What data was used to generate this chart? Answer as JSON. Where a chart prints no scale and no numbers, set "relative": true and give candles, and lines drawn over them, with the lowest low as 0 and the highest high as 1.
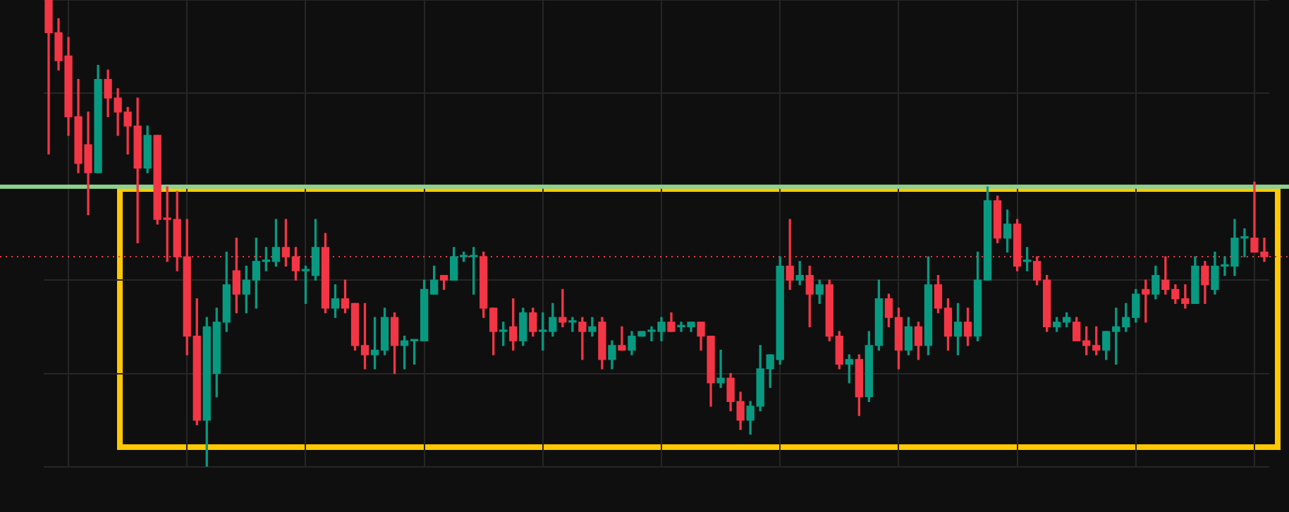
{
  "chart_data": {
    "type": "candlestick",
    "relative": true,
    "grid": true,
    "categories": [
      null,
      null,
      null,
      null,
      null,
      null,
      null,
      null,
      null,
      null,
      null,
      null,
      null,
      null,
      null,
      null,
      null,
      null,
      null,
      null,
      null,
      null,
      null,
      null,
      null,
      null,
      null,
      null,
      null,
      null,
      null,
      null,
      null,
      null,
      null,
      null,
      null,
      null,
      null,
      null,
      null,
      null,
      null,
      null,
      null,
      null,
      null,
      null,
      null,
      null,
      null,
      null,
      null,
      null,
      null,
      null,
      null,
      null,
      null,
      null,
      null,
      null,
      null,
      null,
      null,
      null,
      null,
      null,
      null,
      null,
      null,
      null,
      null,
      null,
      null,
      null,
      null,
      null,
      null,
      null,
      null,
      null,
      null,
      null,
      null,
      null,
      null,
      null,
      null,
      null,
      null,
      null,
      null,
      null,
      null,
      null,
      null,
      null,
      null,
      null,
      null,
      null,
      null,
      null,
      null,
      null,
      null,
      null,
      null,
      null,
      null,
      null,
      null,
      null,
      null,
      null,
      null,
      null,
      null,
      null,
      null,
      null,
      null,
      null
    ],
    "ohlc": [
      [
        1.0,
        1.0,
        0.67,
        0.93
      ],
      [
        0.93,
        0.96,
        0.85,
        0.87
      ],
      [
        0.88,
        0.92,
        0.71,
        0.75
      ],
      [
        0.75,
        0.83,
        0.63,
        0.65
      ],
      [
        0.69,
        0.76,
        0.54,
        0.63
      ],
      [
        0.63,
        0.86,
        0.63,
        0.83
      ],
      [
        0.83,
        0.85,
        0.75,
        0.79
      ],
      [
        0.79,
        0.81,
        0.71,
        0.76
      ],
      [
        0.76,
        0.77,
        0.67,
        0.73
      ],
      [
        0.73,
        0.79,
        0.48,
        0.64
      ],
      [
        0.64,
        0.73,
        0.63,
        0.71
      ],
      [
        0.71,
        0.71,
        0.52,
        0.53
      ],
      [
        0.53,
        0.6,
        0.44,
        0.53
      ],
      [
        0.53,
        0.59,
        0.42,
        0.45
      ],
      [
        0.45,
        0.53,
        0.24,
        0.28
      ],
      [
        0.28,
        0.36,
        0.09,
        0.1
      ],
      [
        0.1,
        0.32,
        0,
        0.3
      ],
      [
        0.2,
        0.34,
        0.15,
        0.31
      ],
      [
        0.31,
        0.46,
        0.29,
        0.39
      ],
      [
        0.42,
        0.49,
        0.33,
        0.37
      ],
      [
        0.37,
        0.43,
        0.33,
        0.4
      ],
      [
        0.4,
        0.49,
        0.34,
        0.44
      ],
      [
        0.44,
        0.47,
        0.42,
        0.44
      ],
      [
        0.44,
        0.53,
        0.43,
        0.47
      ],
      [
        0.47,
        0.53,
        0.43,
        0.45
      ],
      [
        0.45,
        0.47,
        0.4,
        0.42
      ],
      [
        0.42,
        0.43,
        0.35,
        0.42
      ],
      [
        0.41,
        0.53,
        0.4,
        0.47
      ],
      [
        0.47,
        0.5,
        0.33,
        0.34
      ],
      [
        0.34,
        0.39,
        0.32,
        0.36
      ],
      [
        0.36,
        0.4,
        0.33,
        0.34
      ],
      [
        0.35,
        0.35,
        0.25,
        0.26
      ],
      [
        0.26,
        0.35,
        0.21,
        0.24
      ],
      [
        0.24,
        0.32,
        0.21,
        0.25
      ],
      [
        0.25,
        0.34,
        0.24,
        0.32
      ],
      [
        0.32,
        0.33,
        0.2,
        0.26
      ],
      [
        0.26,
        0.28,
        0.21,
        0.27
      ],
      [
        0.27,
        0.27,
        0.22,
        0.27
      ],
      [
        0.27,
        0.4,
        0.27,
        0.38
      ],
      [
        0.37,
        0.43,
        0.37,
        0.4
      ],
      [
        0.41,
        0.41,
        0.38,
        0.4
      ],
      [
        0.4,
        0.47,
        0.4,
        0.45
      ],
      [
        0.45,
        0.46,
        0.44,
        0.45
      ],
      [
        0.45,
        0.47,
        0.37,
        0.45
      ],
      [
        0.45,
        0.46,
        0.32,
        0.34
      ],
      [
        0.34,
        0.34,
        0.24,
        0.29
      ],
      [
        0.29,
        0.31,
        0.26,
        0.29
      ],
      [
        0.3,
        0.36,
        0.25,
        0.27
      ],
      [
        0.27,
        0.34,
        0.26,
        0.33
      ],
      [
        0.33,
        0.34,
        0.28,
        0.29
      ],
      [
        0.29,
        0.33,
        0.25,
        0.29
      ],
      [
        0.29,
        0.35,
        0.28,
        0.32
      ],
      [
        0.32,
        0.38,
        0.3,
        0.31
      ],
      [
        0.31,
        0.32,
        0.29,
        0.31
      ],
      [
        0.31,
        0.32,
        0.23,
        0.29
      ],
      [
        0.29,
        0.32,
        0.28,
        0.3
      ],
      [
        0.31,
        0.32,
        0.21,
        0.23
      ],
      [
        0.23,
        0.27,
        0.21,
        0.26
      ],
      [
        0.26,
        0.3,
        0.25,
        0.25
      ],
      [
        0.25,
        0.29,
        0.24,
        0.28
      ],
      [
        0.28,
        0.29,
        0.28,
        0.29
      ],
      [
        0.29,
        0.3,
        0.27,
        0.29
      ],
      [
        0.29,
        0.32,
        0.27,
        0.31
      ],
      [
        0.31,
        0.33,
        0.29,
        0.29
      ],
      [
        0.3,
        0.31,
        0.29,
        0.3
      ],
      [
        0.3,
        0.31,
        0.29,
        0.31
      ],
      [
        0.31,
        0.31,
        0.25,
        0.28
      ],
      [
        0.28,
        0.28,
        0.13,
        0.18
      ],
      [
        0.18,
        0.25,
        0.17,
        0.19
      ],
      [
        0.19,
        0.2,
        0.12,
        0.14
      ],
      [
        0.14,
        0.16,
        0.08,
        0.1
      ],
      [
        0.1,
        0.14,
        0.07,
        0.13
      ],
      [
        0.13,
        0.26,
        0.12,
        0.21
      ],
      [
        0.21,
        0.24,
        0.17,
        0.24
      ],
      [
        0.23,
        0.45,
        0.22,
        0.43
      ],
      [
        0.43,
        0.53,
        0.38,
        0.4
      ],
      [
        0.4,
        0.44,
        0.39,
        0.41
      ],
      [
        0.41,
        0.43,
        0.3,
        0.37
      ],
      [
        0.37,
        0.4,
        0.35,
        0.39
      ],
      [
        0.39,
        0.4,
        0.27,
        0.28
      ],
      [
        0.28,
        0.29,
        0.21,
        0.22
      ],
      [
        0.22,
        0.24,
        0.18,
        0.23
      ],
      [
        0.23,
        0.24,
        0.11,
        0.15
      ],
      [
        0.15,
        0.29,
        0.14,
        0.26
      ],
      [
        0.26,
        0.4,
        0.25,
        0.36
      ],
      [
        0.36,
        0.37,
        0.3,
        0.32
      ],
      [
        0.32,
        0.34,
        0.21,
        0.25
      ],
      [
        0.25,
        0.32,
        0.24,
        0.3
      ],
      [
        0.3,
        0.31,
        0.23,
        0.26
      ],
      [
        0.26,
        0.45,
        0.24,
        0.39
      ],
      [
        0.39,
        0.41,
        0.33,
        0.34
      ],
      [
        0.34,
        0.36,
        0.25,
        0.28
      ],
      [
        0.28,
        0.35,
        0.24,
        0.31
      ],
      [
        0.31,
        0.34,
        0.26,
        0.28
      ],
      [
        0.28,
        0.46,
        0.27,
        0.4
      ],
      [
        0.4,
        0.6,
        0.4,
        0.57
      ],
      [
        0.57,
        0.58,
        0.48,
        0.49
      ],
      [
        0.49,
        0.55,
        0.46,
        0.52
      ],
      [
        0.52,
        0.53,
        0.42,
        0.43
      ],
      [
        0.44,
        0.47,
        0.42,
        0.44
      ],
      [
        0.44,
        0.45,
        0.39,
        0.4
      ],
      [
        0.4,
        0.41,
        0.29,
        0.3
      ],
      [
        0.3,
        0.32,
        0.29,
        0.31
      ],
      [
        0.31,
        0.33,
        0.3,
        0.32
      ],
      [
        0.31,
        0.32,
        0.27,
        0.27
      ],
      [
        0.27,
        0.3,
        0.24,
        0.26
      ],
      [
        0.26,
        0.3,
        0.24,
        0.25
      ],
      [
        0.25,
        0.29,
        0.23,
        0.29
      ],
      [
        0.29,
        0.34,
        0.22,
        0.3
      ],
      [
        0.3,
        0.35,
        0.29,
        0.32
      ],
      [
        0.32,
        0.38,
        0.31,
        0.37
      ],
      [
        0.38,
        0.4,
        0.31,
        0.37
      ],
      [
        0.37,
        0.43,
        0.36,
        0.41
      ],
      [
        0.4,
        0.45,
        0.37,
        0.38
      ],
      [
        0.38,
        0.39,
        0.35,
        0.36
      ],
      [
        0.36,
        0.39,
        0.34,
        0.35
      ],
      [
        0.35,
        0.45,
        0.35,
        0.43
      ],
      [
        0.43,
        0.44,
        0.35,
        0.39
      ],
      [
        0.38,
        0.46,
        0.37,
        0.43
      ],
      [
        0.43,
        0.45,
        0.41,
        0.43
      ],
      [
        0.43,
        0.53,
        0.41,
        0.49
      ],
      [
        0.49,
        0.51,
        0.45,
        0.49
      ],
      [
        0.49,
        0.61,
        0.46,
        0.46
      ],
      [
        0.46,
        0.49,
        0.44,
        0.45
      ]
    ],
    "colors": [
      "#f23645",
      "#f23645",
      "#f23645",
      "#f23645",
      "#f23645",
      "#089981",
      "#f23645",
      "#f23645",
      "#f23645",
      "#f23645",
      "#089981",
      "#f23645",
      "#f23645",
      "#f23645",
      "#f23645",
      "#f23645",
      "#089981",
      "#089981",
      "#089981",
      "#f23645",
      "#089981",
      "#089981",
      "#089981",
      "#089981",
      "#f23645",
      "#f23645",
      "#089981",
      "#089981",
      "#f23645",
      "#089981",
      "#f23645",
      "#f23645",
      "#f23645",
      "#089981",
      "#089981",
      "#f23645",
      "#089981",
      "#089981",
      "#089981",
      "#089981",
      "#f23645",
      "#089981",
      "#089981",
      "#089981",
      "#f23645",
      "#f23645",
      "#089981",
      "#f23645",
      "#089981",
      "#f23645",
      "#089981",
      "#089981",
      "#f23645",
      "#089981",
      "#f23645",
      "#089981",
      "#f23645",
      "#089981",
      "#f23645",
      "#089981",
      "#089981",
      "#089981",
      "#089981",
      "#f23645",
      "#089981",
      "#089981",
      "#f23645",
      "#f23645",
      "#089981",
      "#f23645",
      "#f23645",
      "#089981",
      "#089981",
      "#089981",
      "#089981",
      "#f23645",
      "#089981",
      "#f23645",
      "#089981",
      "#f23645",
      "#f23645",
      "#089981",
      "#f23645",
      "#089981",
      "#089981",
      "#f23645",
      "#f23645",
      "#089981",
      "#f23645",
      "#089981",
      "#f23645",
      "#f23645",
      "#089981",
      "#f23645",
      "#089981",
      "#089981",
      "#f23645",
      "#089981",
      "#f23645",
      "#089981",
      "#f23645",
      "#f23645",
      "#089981",
      "#089981",
      "#f23645",
      "#f23645",
      "#f23645",
      "#089981",
      "#089981",
      "#089981",
      "#089981",
      "#f23645",
      "#089981",
      "#f23645",
      "#f23645",
      "#f23645",
      "#089981",
      "#f23645",
      "#089981",
      "#089981",
      "#089981",
      "#089981",
      "#f23645",
      "#f23645"
    ],
    "ref_lines": [
      {
        "axis": "y",
        "value": 0.6,
        "color": "#8fd18f",
        "line_style": "solid"
      },
      {
        "axis": "y",
        "value": 0.45,
        "color": "#f23645",
        "line_style": "dotted"
      }
    ]
  }
}
